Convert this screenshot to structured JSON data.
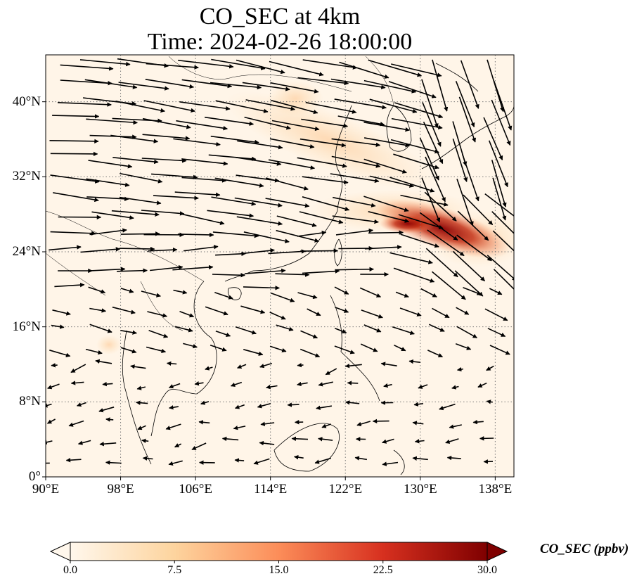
{
  "title": {
    "line1": "CO_SEC at 4km",
    "line2": "Time: 2024-02-26 18:00:00"
  },
  "map": {
    "extent": {
      "lon_min": 90,
      "lon_max": 140,
      "lat_min": 0,
      "lat_max": 45
    },
    "lon_ticks": [
      {
        "value": 90,
        "label": "90°E"
      },
      {
        "value": 98,
        "label": "98°E"
      },
      {
        "value": 106,
        "label": "106°E"
      },
      {
        "value": 114,
        "label": "114°E"
      },
      {
        "value": 122,
        "label": "122°E"
      },
      {
        "value": 130,
        "label": "130°E"
      },
      {
        "value": 138,
        "label": "138°E"
      }
    ],
    "lat_ticks": [
      {
        "value": 40,
        "label": "40°N"
      },
      {
        "value": 32,
        "label": "32°N"
      },
      {
        "value": 24,
        "label": "24°N"
      },
      {
        "value": 16,
        "label": "16°N"
      },
      {
        "value": 8,
        "label": "8°N"
      },
      {
        "value": 0,
        "label": "0°"
      }
    ],
    "gridlines": "dotted",
    "background_color": "#fff5e8",
    "wind_vectors": "shown"
  },
  "colorbar": {
    "label": "CO_SEC (ppbv)",
    "min": 0.0,
    "max": 30.0,
    "cmap": "OrRd",
    "extend": "both",
    "ticks": [
      {
        "value": 0.0,
        "label": "0.0"
      },
      {
        "value": 7.5,
        "label": "7.5"
      },
      {
        "value": 15.0,
        "label": "15.0"
      },
      {
        "value": 22.5,
        "label": "22.5"
      },
      {
        "value": 30.0,
        "label": "30.0"
      }
    ],
    "colors": [
      "#fff7ec",
      "#fdd49e",
      "#fc8d59",
      "#d7301f",
      "#7f0000"
    ]
  }
}
